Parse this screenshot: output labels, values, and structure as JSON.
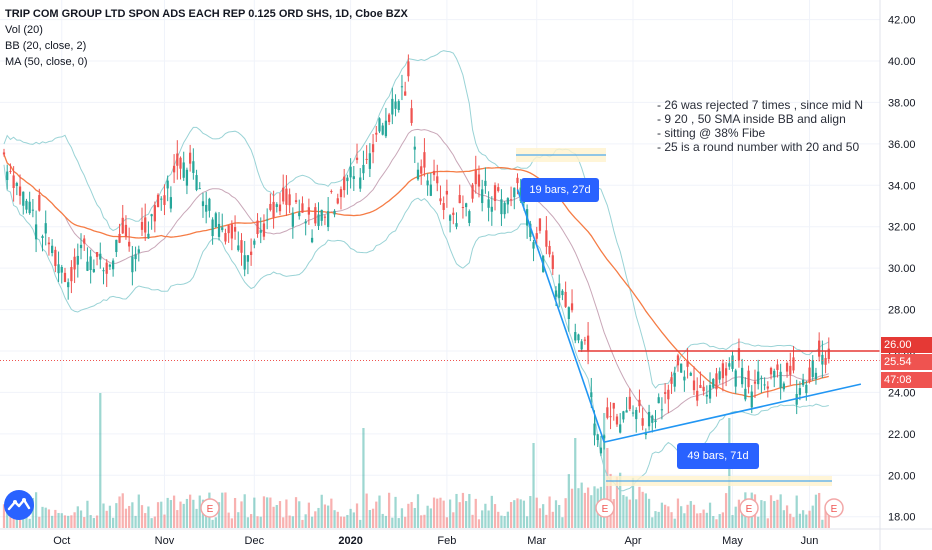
{
  "legend": {
    "title": "TRIP COM GROUP LTD SPON ADS EACH REP 0.125 ORD SHS, 1D, Cboe BZX",
    "vol": "Vol (20)",
    "bb": "BB (20, close, 2)",
    "ma": "MA (50, close, 0)"
  },
  "notes": [
    "- 26 was rejected 7 times  , since mid N",
    "- 9 20 , 50 SMA inside BB and align",
    "- sitting @ 38% Fibe",
    "- 25 is a round number with 20 and 50"
  ],
  "callouts": {
    "first": "19 bars, 27d",
    "second": "49 bars, 71d"
  },
  "price_tags": {
    "resistance": "26.00",
    "last": "25.54",
    "countdown": "47:08"
  },
  "earnings_marker": "E",
  "colors": {
    "up": "#26a69a",
    "down": "#ef5350",
    "bb": "#9ad3d6",
    "ma": "#f57c45",
    "trend": "#2196f3",
    "resistance": "#e53935",
    "callout": "#2962ff"
  },
  "chart_data": {
    "type": "candlestick",
    "title": "TRIP COM GROUP LTD SPON ADS EACH REP 0.125 ORD SHS, 1D, Cboe BZX",
    "ylim": [
      17.6,
      42.8
    ],
    "y_ticks": [
      "18.00",
      "20.00",
      "22.00",
      "24.00",
      "26.00",
      "28.00",
      "30.00",
      "32.00",
      "34.00",
      "36.00",
      "38.00",
      "40.00",
      "42.00"
    ],
    "x_ticks": [
      "Oct",
      "Nov",
      "Dec",
      "2020",
      "Feb",
      "Mar",
      "Apr",
      "May",
      "Jun"
    ],
    "close_path": [
      [
        0,
        35.5
      ],
      [
        4,
        34.0
      ],
      [
        8,
        33.0
      ],
      [
        12,
        32.0
      ],
      [
        16,
        30.5
      ],
      [
        20,
        29.5
      ],
      [
        24,
        31.0
      ],
      [
        28,
        30.5
      ],
      [
        32,
        29.8
      ],
      [
        36,
        31.5
      ],
      [
        40,
        30.5
      ],
      [
        44,
        32.0
      ],
      [
        48,
        33.0
      ],
      [
        52,
        34.0
      ],
      [
        56,
        35.5
      ],
      [
        60,
        34.5
      ],
      [
        64,
        33.0
      ],
      [
        68,
        32.0
      ],
      [
        72,
        31.5
      ],
      [
        76,
        31.0
      ],
      [
        80,
        31.8
      ],
      [
        84,
        32.5
      ],
      [
        88,
        33.0
      ],
      [
        92,
        32.5
      ],
      [
        96,
        32.0
      ],
      [
        100,
        32.8
      ],
      [
        104,
        33.5
      ],
      [
        108,
        34.5
      ],
      [
        112,
        35.0
      ],
      [
        116,
        36.5
      ],
      [
        120,
        37.5
      ],
      [
        124,
        38.5
      ],
      [
        126,
        38.8
      ],
      [
        128,
        35.5
      ],
      [
        132,
        34.5
      ],
      [
        136,
        33.5
      ],
      [
        140,
        32.5
      ],
      [
        144,
        33.0
      ],
      [
        148,
        34.0
      ],
      [
        152,
        33.5
      ],
      [
        156,
        33.2
      ],
      [
        160,
        34.0
      ],
      [
        162,
        33.8
      ],
      [
        164,
        32.0
      ],
      [
        168,
        31.0
      ],
      [
        172,
        29.5
      ],
      [
        176,
        28.0
      ],
      [
        180,
        27.0
      ],
      [
        182,
        26.0
      ],
      [
        184,
        23.0
      ],
      [
        186,
        21.8
      ],
      [
        188,
        23.0
      ],
      [
        192,
        22.5
      ],
      [
        196,
        23.5
      ],
      [
        200,
        22.5
      ],
      [
        204,
        23.5
      ],
      [
        208,
        24.5
      ],
      [
        212,
        25.0
      ],
      [
        216,
        24.0
      ],
      [
        220,
        24.5
      ],
      [
        224,
        25.0
      ],
      [
        228,
        25.5
      ],
      [
        232,
        24.5
      ],
      [
        236,
        25.0
      ],
      [
        240,
        24.5
      ],
      [
        244,
        25.0
      ],
      [
        248,
        24.0
      ],
      [
        252,
        25.0
      ],
      [
        255,
        25.5
      ],
      [
        257,
        25.54
      ]
    ],
    "bars_total": 258,
    "x_tick_index": [
      18,
      50,
      78,
      108,
      138,
      166,
      196,
      227,
      251
    ],
    "resistance_level": 26.0,
    "last_price": 25.54,
    "trendlines": [
      {
        "from": [
          160,
          33.8
        ],
        "to": [
          187,
          21.6
        ],
        "label": "19 bars, 27d"
      },
      {
        "from": [
          187,
          21.6
        ],
        "to": [
          267,
          24.4
        ],
        "label": "49 bars, 71d"
      }
    ],
    "indicators": [
      "Vol (20)",
      "BB (20, close, 2)",
      "MA (50, close, 0)"
    ]
  }
}
